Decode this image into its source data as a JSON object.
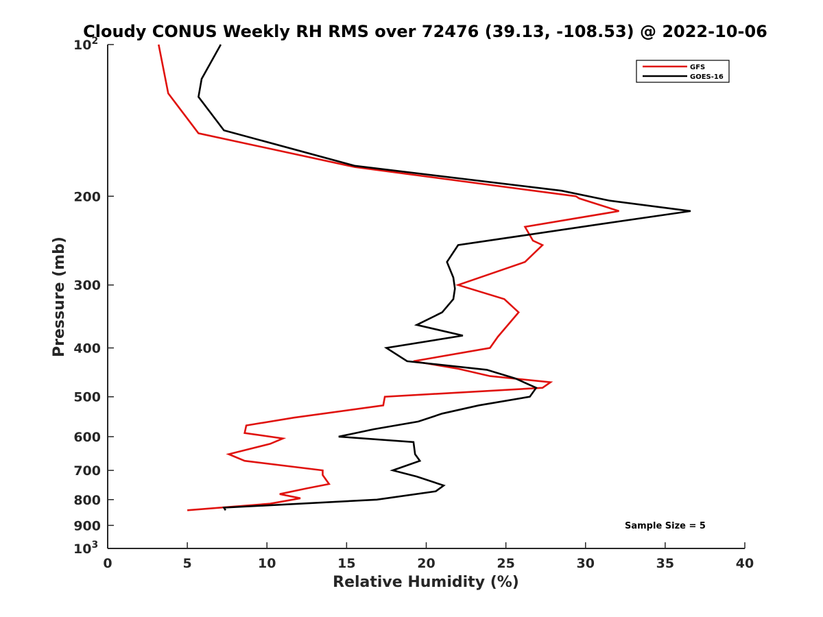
{
  "chart_data": {
    "type": "line",
    "title": "Cloudy CONUS Weekly RH RMS over 72476 (39.13, -108.53) @ 2022-10-06",
    "xlabel": "Relative Humidity (%)",
    "ylabel": "Pressure (mb)",
    "xlim": [
      0,
      40
    ],
    "ylim": [
      100,
      1000
    ],
    "y_scale": "log",
    "y_reversed": true,
    "grid": false,
    "legend_position": "top-right",
    "x_ticks": [
      "0",
      "5",
      "10",
      "15",
      "20",
      "25",
      "30",
      "35",
      "40"
    ],
    "y_ticks": [
      {
        "value": 100,
        "label": "10",
        "sup": "2"
      },
      {
        "value": 200,
        "label": "200"
      },
      {
        "value": 300,
        "label": "300"
      },
      {
        "value": 400,
        "label": "400"
      },
      {
        "value": 500,
        "label": "500"
      },
      {
        "value": 600,
        "label": "600"
      },
      {
        "value": 700,
        "label": "700"
      },
      {
        "value": 800,
        "label": "800"
      },
      {
        "value": 900,
        "label": "900"
      },
      {
        "value": 1000,
        "label": "10",
        "sup": "3"
      }
    ],
    "annotation": "Sample Size = 5",
    "series": [
      {
        "name": "GFS",
        "color": "#e0120e",
        "points": [
          [
            3.2,
            100
          ],
          [
            3.8,
            125
          ],
          [
            5.7,
            150
          ],
          [
            15.5,
            175
          ],
          [
            29.4,
            200
          ],
          [
            29.6,
            202
          ],
          [
            32.1,
            214
          ],
          [
            26.2,
            230
          ],
          [
            26.7,
            245
          ],
          [
            27.3,
            250
          ],
          [
            26.2,
            270
          ],
          [
            22.0,
            300
          ],
          [
            24.9,
            320
          ],
          [
            25.8,
            340
          ],
          [
            24.5,
            380
          ],
          [
            24.0,
            400
          ],
          [
            19.2,
            425
          ],
          [
            22.0,
            440
          ],
          [
            24.0,
            455
          ],
          [
            27.8,
            468
          ],
          [
            27.3,
            480
          ],
          [
            17.4,
            500
          ],
          [
            17.3,
            520
          ],
          [
            11.7,
            550
          ],
          [
            8.7,
            570
          ],
          [
            8.6,
            590
          ],
          [
            11.0,
            605
          ],
          [
            10.2,
            620
          ],
          [
            7.6,
            650
          ],
          [
            8.6,
            670
          ],
          [
            13.5,
            700
          ],
          [
            13.5,
            715
          ],
          [
            13.9,
            745
          ],
          [
            12.5,
            760
          ],
          [
            10.8,
            780
          ],
          [
            12.1,
            795
          ],
          [
            10.2,
            815
          ],
          [
            5.0,
            840
          ]
        ]
      },
      {
        "name": "GOES-16",
        "color": "#000000",
        "points": [
          [
            7.1,
            100
          ],
          [
            5.9,
            117
          ],
          [
            5.7,
            127
          ],
          [
            7.3,
            148
          ],
          [
            15.5,
            174
          ],
          [
            28.5,
            195
          ],
          [
            31.5,
            204
          ],
          [
            36.6,
            214
          ],
          [
            31.0,
            227
          ],
          [
            22.0,
            250
          ],
          [
            21.3,
            270
          ],
          [
            21.7,
            290
          ],
          [
            21.8,
            305
          ],
          [
            21.7,
            320
          ],
          [
            21.0,
            340
          ],
          [
            19.4,
            360
          ],
          [
            22.3,
            378
          ],
          [
            17.5,
            400
          ],
          [
            18.8,
            425
          ],
          [
            23.8,
            442
          ],
          [
            25.6,
            460
          ],
          [
            26.9,
            480
          ],
          [
            26.5,
            500
          ],
          [
            23.3,
            520
          ],
          [
            21.0,
            540
          ],
          [
            19.5,
            560
          ],
          [
            16.7,
            580
          ],
          [
            14.5,
            600
          ],
          [
            19.2,
            615
          ],
          [
            19.3,
            650
          ],
          [
            19.6,
            670
          ],
          [
            17.9,
            700
          ],
          [
            19.4,
            720
          ],
          [
            21.1,
            750
          ],
          [
            20.6,
            770
          ],
          [
            16.9,
            800
          ],
          [
            7.3,
            830
          ],
          [
            7.4,
            840
          ]
        ]
      }
    ]
  }
}
